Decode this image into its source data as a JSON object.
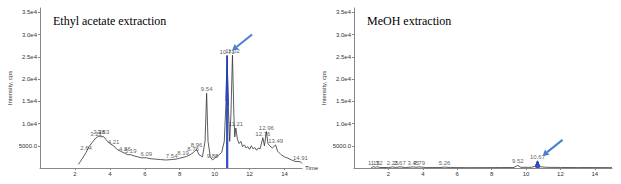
{
  "chart_data": [
    {
      "type": "line",
      "title": "Ethyl acetate extraction",
      "xlabel": "Time",
      "ylabel": "Intensity, cps",
      "color": "#333333",
      "x": [
        2.2,
        2.4,
        2.64,
        2.8,
        3.0,
        3.21,
        3.38,
        3.5,
        3.63,
        3.8,
        4.0,
        4.21,
        4.4,
        4.6,
        4.86,
        5.0,
        5.19,
        5.4,
        5.6,
        5.8,
        6.09,
        6.3,
        6.6,
        6.9,
        7.2,
        7.54,
        7.8,
        8.0,
        8.19,
        8.4,
        8.6,
        8.76,
        8.96,
        9.1,
        9.3,
        9.45,
        9.54,
        9.62,
        9.75,
        9.88,
        10.0,
        10.2,
        10.4,
        10.55,
        10.65,
        10.71,
        10.78,
        10.86,
        10.93,
        11.02,
        11.1,
        11.15,
        11.21,
        11.3,
        11.4,
        11.5,
        11.6,
        11.7,
        11.8,
        11.9,
        12.0,
        12.1,
        12.2,
        12.3,
        12.4,
        12.5,
        12.6,
        12.76,
        12.85,
        12.96,
        13.05,
        13.15,
        13.3,
        13.49,
        13.6,
        13.8,
        14.0,
        14.2,
        14.4,
        14.6,
        14.91,
        15.0
      ],
      "values": [
        800,
        2000,
        3500,
        4800,
        5800,
        6800,
        7200,
        7000,
        7100,
        6300,
        5500,
        5000,
        4200,
        3800,
        3300,
        3000,
        3000,
        2700,
        2500,
        2300,
        2300,
        2100,
        2000,
        1900,
        1800,
        1900,
        2000,
        2200,
        2400,
        2600,
        3000,
        3400,
        4200,
        3000,
        2500,
        6000,
        16800,
        6000,
        2500,
        1800,
        2200,
        2800,
        3500,
        6000,
        15000,
        25300,
        14000,
        6000,
        12000,
        25400,
        12000,
        7000,
        9000,
        6500,
        5500,
        6000,
        4800,
        5200,
        4500,
        4800,
        4200,
        5000,
        4300,
        4600,
        4000,
        4500,
        4300,
        6800,
        5000,
        8200,
        5500,
        5000,
        4500,
        5200,
        3800,
        3000,
        2500,
        2200,
        1800,
        1500,
        1400,
        1000
      ],
      "xlim": [
        0,
        15
      ],
      "xticks": [
        2,
        4,
        6,
        8,
        10,
        12,
        14
      ],
      "ylim": [
        0,
        36000
      ],
      "yticks": [
        {
          "value": 5000,
          "label": "5000.0"
        },
        {
          "value": 10000,
          "label": "1.0e4"
        },
        {
          "value": 15000,
          "label": "1.5e4"
        },
        {
          "value": 20000,
          "label": "2.0e4"
        },
        {
          "value": 25000,
          "label": "2.5e4"
        },
        {
          "value": 30000,
          "label": "3.0e4"
        },
        {
          "value": 35000,
          "label": "3.5e4"
        }
      ],
      "highlight": {
        "x_range": [
          10.6,
          10.82
        ],
        "color": "#1f3fbf"
      },
      "annotations": [
        {
          "text": "2.64",
          "x": 2.64,
          "y": 3500
        },
        {
          "text": "3.21",
          "x": 3.21,
          "y": 6800
        },
        {
          "text": "3.38",
          "x": 3.38,
          "y": 7200
        },
        {
          "text": "3.63",
          "x": 3.63,
          "y": 7100
        },
        {
          "text": "4.21",
          "x": 4.21,
          "y": 5000
        },
        {
          "text": "4.86",
          "x": 4.86,
          "y": 3300
        },
        {
          "text": "5.19",
          "x": 5.19,
          "y": 3000
        },
        {
          "text": "6.09",
          "x": 6.09,
          "y": 2300
        },
        {
          "text": "7.54",
          "x": 7.54,
          "y": 1900
        },
        {
          "text": "8.19",
          "x": 8.19,
          "y": 2400
        },
        {
          "text": "8.76",
          "x": 8.76,
          "y": 3400
        },
        {
          "text": "8.96",
          "x": 8.96,
          "y": 4200
        },
        {
          "text": "9.54",
          "x": 9.54,
          "y": 16800
        },
        {
          "text": "9.88",
          "x": 9.88,
          "y": 1800
        },
        {
          "text": "10.71",
          "x": 10.71,
          "y": 25300
        },
        {
          "text": "11.02",
          "x": 11.02,
          "y": 25400
        },
        {
          "text": "11.21",
          "x": 11.21,
          "y": 9000
        },
        {
          "text": "12.76",
          "x": 12.76,
          "y": 6800
        },
        {
          "text": "12.96",
          "x": 12.96,
          "y": 8200
        },
        {
          "text": "13.49",
          "x": 13.49,
          "y": 5200
        },
        {
          "text": "14.91",
          "x": 14.91,
          "y": 1400
        }
      ]
    },
    {
      "type": "line",
      "title": "MeOH extraction",
      "ylabel": "Intensity, cps",
      "color": "#333333",
      "x": [
        1.0,
        1.15,
        1.25,
        1.32,
        1.5,
        2.0,
        2.25,
        2.4,
        2.67,
        3.0,
        3.45,
        3.6,
        3.79,
        4.2,
        5.0,
        5.26,
        5.6,
        6.5,
        7.5,
        8.5,
        9.3,
        9.52,
        9.7,
        10.3,
        10.55,
        10.67,
        10.8,
        11.2,
        12.0,
        13.0,
        14.0,
        15.0
      ],
      "values": [
        100,
        300,
        150,
        300,
        120,
        100,
        250,
        120,
        250,
        100,
        250,
        150,
        250,
        100,
        100,
        200,
        100,
        80,
        80,
        100,
        120,
        600,
        150,
        150,
        400,
        1600,
        300,
        150,
        120,
        100,
        100,
        80
      ],
      "xlim": [
        0,
        15
      ],
      "xticks": [
        2,
        4,
        6,
        8,
        10,
        12,
        14
      ],
      "ylim": [
        0,
        36000
      ],
      "yticks": [
        {
          "value": 5000,
          "label": "5000.0"
        },
        {
          "value": 10000,
          "label": "1.0e4"
        },
        {
          "value": 15000,
          "label": "1.5e4"
        },
        {
          "value": 20000,
          "label": "2.0e4"
        },
        {
          "value": 25000,
          "label": "2.5e4"
        },
        {
          "value": 30000,
          "label": "3.0e4"
        },
        {
          "value": 35000,
          "label": "3.5e4"
        }
      ],
      "highlight": {
        "x_range": [
          10.55,
          10.8
        ],
        "color": "#1f3fbf"
      },
      "annotations": [
        {
          "text": "1.15",
          "x": 1.15,
          "y": 300
        },
        {
          "text": "1.32",
          "x": 1.32,
          "y": 300
        },
        {
          "text": "2.25",
          "x": 2.25,
          "y": 250
        },
        {
          "text": "2.67",
          "x": 2.67,
          "y": 250
        },
        {
          "text": "3.45",
          "x": 3.45,
          "y": 250
        },
        {
          "text": "3.79",
          "x": 3.79,
          "y": 250
        },
        {
          "text": "5.26",
          "x": 5.26,
          "y": 200
        },
        {
          "text": "9.52",
          "x": 9.52,
          "y": 600
        },
        {
          "text": "10.67",
          "x": 10.67,
          "y": 1600
        }
      ]
    }
  ]
}
